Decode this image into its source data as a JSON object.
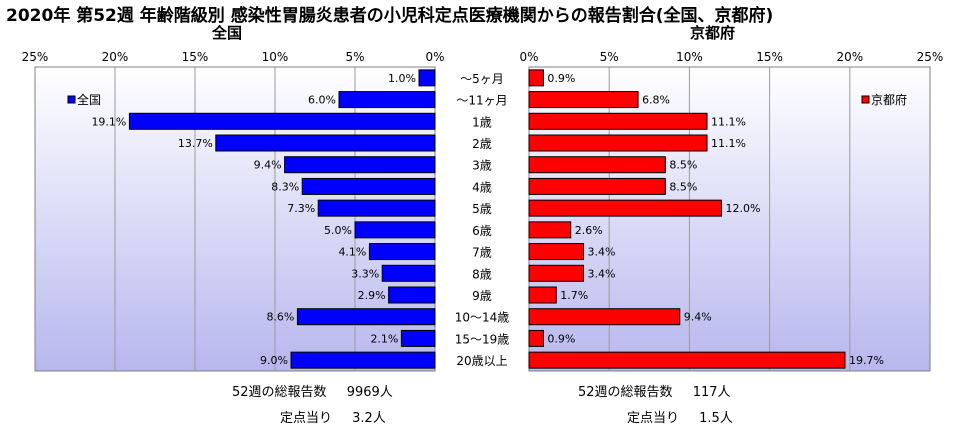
{
  "title": "2020年 第52週 年齢階級別 感染性胃腸炎患者の小児科定点医療機関からの報告割合(全国、京都府)",
  "chart_data": [
    {
      "type": "bar",
      "orientation": "horizontal",
      "direction": "right-to-left",
      "subtitle": "全国",
      "categories": [
        "～5ヶ月",
        "～11ヶ月",
        "1歳",
        "2歳",
        "3歳",
        "4歳",
        "5歳",
        "6歳",
        "7歳",
        "8歳",
        "9歳",
        "10～14歳",
        "15～19歳",
        "20歳以上"
      ],
      "series": [
        {
          "name": "全国",
          "color": "#0000ff",
          "values": [
            1.0,
            6.0,
            19.1,
            13.7,
            9.4,
            8.3,
            7.3,
            5.0,
            4.1,
            3.3,
            2.9,
            8.6,
            2.1,
            9.0
          ],
          "labels": [
            "1.0%",
            "6.0%",
            "19.1%",
            "13.7%",
            "9.4%",
            "8.3%",
            "7.3%",
            "5.0%",
            "4.1%",
            "3.3%",
            "2.9%",
            "8.6%",
            "2.1%",
            "9.0%"
          ]
        }
      ],
      "xlim": [
        0,
        25
      ],
      "xticks": [
        "25%",
        "20%",
        "15%",
        "10%",
        "5%",
        "0%"
      ],
      "legend": "top-left",
      "grid": true,
      "plot_bg": "gradient-lavender"
    },
    {
      "type": "bar",
      "orientation": "horizontal",
      "direction": "left-to-right",
      "subtitle": "京都府",
      "categories": [
        "～5ヶ月",
        "～11ヶ月",
        "1歳",
        "2歳",
        "3歳",
        "4歳",
        "5歳",
        "6歳",
        "7歳",
        "8歳",
        "9歳",
        "10～14歳",
        "15～19歳",
        "20歳以上"
      ],
      "series": [
        {
          "name": "京都府",
          "color": "#ff0000",
          "values": [
            0.9,
            6.8,
            11.1,
            11.1,
            8.5,
            8.5,
            12.0,
            2.6,
            3.4,
            3.4,
            1.7,
            9.4,
            0.9,
            19.7
          ],
          "labels": [
            "0.9%",
            "6.8%",
            "11.1%",
            "11.1%",
            "8.5%",
            "8.5%",
            "12.0%",
            "2.6%",
            "3.4%",
            "3.4%",
            "1.7%",
            "9.4%",
            "0.9%",
            "19.7%"
          ]
        }
      ],
      "xlim": [
        0,
        25
      ],
      "xticks": [
        "0%",
        "5%",
        "10%",
        "15%",
        "20%",
        "25%"
      ],
      "legend": "top-right",
      "grid": true,
      "plot_bg": "gradient-lavender"
    }
  ],
  "footer": {
    "left": {
      "reports_label": "52週の総報告数",
      "reports_value": "9969人",
      "per_site_label": "定点当り",
      "per_site_value": "3.2人"
    },
    "right": {
      "reports_label": "52週の総報告数",
      "reports_value": "117人",
      "per_site_label": "定点当り",
      "per_site_value": "1.5人"
    }
  }
}
